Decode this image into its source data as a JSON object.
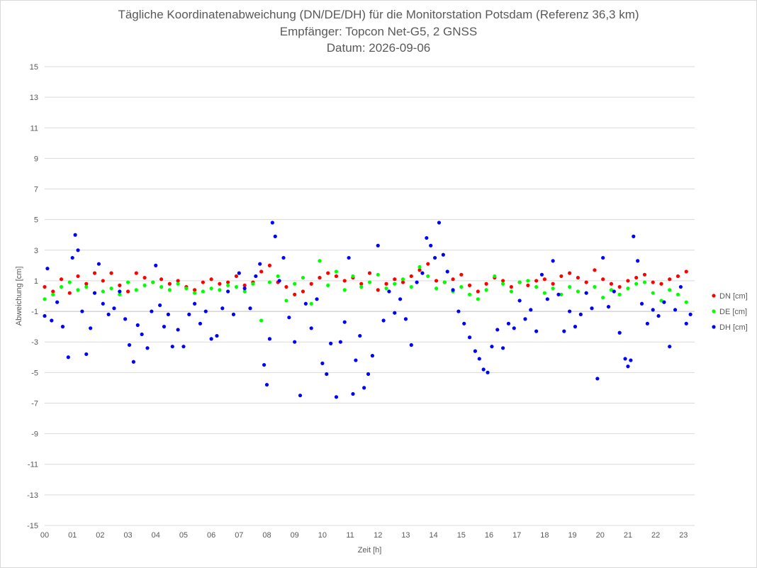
{
  "chart_data": {
    "type": "scatter",
    "title_lines": [
      "Tägliche Koordinatenabweichung (DN/DE/DH) für die Monitorstation Potsdam (Referenz 36,3 km)",
      "Empfänger: Topcon Net-G5, 2 GNSS",
      "Datum: 2026-09-06"
    ],
    "xlabel": "Zeit [h]",
    "ylabel": "Abweichung [cm]",
    "xlim": [
      0,
      23.4
    ],
    "ylim": [
      -15,
      15
    ],
    "x_tick_labels": [
      "00",
      "01",
      "02",
      "03",
      "04",
      "05",
      "06",
      "07",
      "08",
      "09",
      "10",
      "11",
      "12",
      "13",
      "14",
      "15",
      "16",
      "17",
      "18",
      "19",
      "20",
      "21",
      "22",
      "23"
    ],
    "y_tick_labels": [
      "15",
      "13",
      "11",
      "9",
      "7",
      "5",
      "3",
      "1",
      "-1",
      "-3",
      "-5",
      "-7",
      "-9",
      "-11",
      "-13",
      "-15"
    ],
    "legend_position": "right",
    "grid": "horizontal",
    "series": [
      {
        "name": "DN [cm]",
        "color": "#ff0000",
        "points": [
          [
            0.0,
            0.6
          ],
          [
            0.3,
            0.3
          ],
          [
            0.6,
            1.1
          ],
          [
            0.9,
            0.2
          ],
          [
            1.2,
            1.3
          ],
          [
            1.5,
            0.8
          ],
          [
            1.8,
            1.5
          ],
          [
            2.1,
            1.0
          ],
          [
            2.4,
            1.5
          ],
          [
            2.7,
            0.7
          ],
          [
            3.0,
            0.3
          ],
          [
            3.3,
            1.5
          ],
          [
            3.6,
            1.2
          ],
          [
            3.9,
            0.9
          ],
          [
            4.2,
            1.1
          ],
          [
            4.5,
            0.8
          ],
          [
            4.8,
            1.0
          ],
          [
            5.1,
            0.6
          ],
          [
            5.4,
            0.4
          ],
          [
            5.7,
            0.9
          ],
          [
            6.0,
            1.1
          ],
          [
            6.3,
            0.8
          ],
          [
            6.6,
            0.9
          ],
          [
            6.9,
            1.3
          ],
          [
            7.2,
            0.7
          ],
          [
            7.5,
            0.9
          ],
          [
            7.8,
            1.6
          ],
          [
            8.1,
            2.0
          ],
          [
            8.4,
            0.9
          ],
          [
            8.7,
            0.6
          ],
          [
            9.0,
            0.1
          ],
          [
            9.3,
            0.3
          ],
          [
            9.6,
            0.8
          ],
          [
            9.9,
            1.2
          ],
          [
            10.2,
            1.5
          ],
          [
            10.5,
            1.3
          ],
          [
            10.8,
            1.0
          ],
          [
            11.1,
            1.2
          ],
          [
            11.4,
            0.8
          ],
          [
            11.7,
            1.5
          ],
          [
            12.0,
            0.4
          ],
          [
            12.3,
            0.8
          ],
          [
            12.6,
            1.1
          ],
          [
            12.9,
            0.9
          ],
          [
            13.2,
            1.3
          ],
          [
            13.5,
            1.7
          ],
          [
            13.8,
            2.1
          ],
          [
            14.1,
            1.0
          ],
          [
            14.4,
            0.9
          ],
          [
            14.7,
            1.1
          ],
          [
            15.0,
            1.4
          ],
          [
            15.3,
            0.7
          ],
          [
            15.6,
            0.3
          ],
          [
            15.9,
            0.8
          ],
          [
            16.2,
            1.2
          ],
          [
            16.5,
            1.0
          ],
          [
            16.8,
            0.6
          ],
          [
            17.1,
            0.9
          ],
          [
            17.4,
            0.7
          ],
          [
            17.7,
            1.0
          ],
          [
            18.0,
            1.1
          ],
          [
            18.3,
            0.8
          ],
          [
            18.6,
            1.3
          ],
          [
            18.9,
            1.5
          ],
          [
            19.2,
            1.2
          ],
          [
            19.5,
            0.9
          ],
          [
            19.8,
            1.7
          ],
          [
            20.1,
            1.1
          ],
          [
            20.4,
            0.8
          ],
          [
            20.7,
            0.6
          ],
          [
            21.0,
            1.0
          ],
          [
            21.3,
            1.2
          ],
          [
            21.6,
            1.4
          ],
          [
            21.9,
            0.9
          ],
          [
            22.2,
            0.8
          ],
          [
            22.5,
            1.1
          ],
          [
            22.8,
            1.3
          ],
          [
            23.1,
            1.6
          ]
        ]
      },
      {
        "name": "DE [cm]",
        "color": "#00ff00",
        "points": [
          [
            0.0,
            -0.2
          ],
          [
            0.3,
            0.1
          ],
          [
            0.6,
            0.6
          ],
          [
            0.9,
            0.9
          ],
          [
            1.2,
            0.4
          ],
          [
            1.5,
            0.6
          ],
          [
            1.8,
            0.2
          ],
          [
            2.1,
            0.3
          ],
          [
            2.4,
            0.5
          ],
          [
            2.7,
            0.1
          ],
          [
            3.0,
            0.9
          ],
          [
            3.3,
            0.4
          ],
          [
            3.6,
            0.7
          ],
          [
            3.9,
            0.9
          ],
          [
            4.2,
            0.6
          ],
          [
            4.5,
            0.4
          ],
          [
            4.8,
            0.8
          ],
          [
            5.1,
            0.5
          ],
          [
            5.4,
            0.2
          ],
          [
            5.7,
            0.3
          ],
          [
            6.0,
            0.5
          ],
          [
            6.3,
            0.4
          ],
          [
            6.6,
            0.7
          ],
          [
            6.9,
            0.6
          ],
          [
            7.2,
            0.3
          ],
          [
            7.5,
            0.8
          ],
          [
            7.8,
            -1.6
          ],
          [
            8.1,
            0.9
          ],
          [
            8.4,
            1.3
          ],
          [
            8.7,
            -0.3
          ],
          [
            9.0,
            0.8
          ],
          [
            9.3,
            1.2
          ],
          [
            9.6,
            -0.5
          ],
          [
            9.9,
            2.3
          ],
          [
            10.2,
            0.7
          ],
          [
            10.5,
            1.6
          ],
          [
            10.8,
            0.4
          ],
          [
            11.1,
            1.3
          ],
          [
            11.4,
            0.6
          ],
          [
            11.7,
            0.9
          ],
          [
            12.0,
            1.4
          ],
          [
            12.3,
            0.5
          ],
          [
            12.6,
            0.8
          ],
          [
            12.9,
            1.1
          ],
          [
            13.2,
            0.6
          ],
          [
            13.5,
            1.9
          ],
          [
            13.8,
            1.3
          ],
          [
            14.1,
            0.5
          ],
          [
            14.4,
            0.9
          ],
          [
            14.7,
            0.3
          ],
          [
            15.0,
            0.6
          ],
          [
            15.3,
            0.1
          ],
          [
            15.6,
            -0.2
          ],
          [
            15.9,
            0.4
          ],
          [
            16.2,
            1.3
          ],
          [
            16.5,
            0.8
          ],
          [
            16.8,
            0.3
          ],
          [
            17.1,
            0.9
          ],
          [
            17.4,
            1.0
          ],
          [
            17.7,
            0.6
          ],
          [
            18.0,
            0.2
          ],
          [
            18.3,
            0.5
          ],
          [
            18.6,
            0.1
          ],
          [
            18.9,
            0.6
          ],
          [
            19.2,
            0.3
          ],
          [
            19.5,
            0.2
          ],
          [
            19.8,
            0.6
          ],
          [
            20.1,
            -0.1
          ],
          [
            20.4,
            0.4
          ],
          [
            20.7,
            0.1
          ],
          [
            21.0,
            0.5
          ],
          [
            21.3,
            0.8
          ],
          [
            21.6,
            0.9
          ],
          [
            21.9,
            0.2
          ],
          [
            22.2,
            -0.3
          ],
          [
            22.5,
            0.4
          ],
          [
            22.8,
            0.1
          ],
          [
            23.1,
            -0.4
          ]
        ]
      },
      {
        "name": "DH [cm]",
        "color": "#0000ff",
        "points": [
          [
            0.0,
            -1.3
          ],
          [
            0.1,
            1.8
          ],
          [
            0.25,
            -1.6
          ],
          [
            0.45,
            -0.4
          ],
          [
            0.65,
            -2.0
          ],
          [
            0.85,
            -4.0
          ],
          [
            1.0,
            2.5
          ],
          [
            1.1,
            4.0
          ],
          [
            1.2,
            3.0
          ],
          [
            1.35,
            -1.0
          ],
          [
            1.5,
            -3.8
          ],
          [
            1.65,
            -2.1
          ],
          [
            1.8,
            0.2
          ],
          [
            1.95,
            2.1
          ],
          [
            2.1,
            -0.5
          ],
          [
            2.3,
            -1.2
          ],
          [
            2.5,
            -0.8
          ],
          [
            2.7,
            0.3
          ],
          [
            2.9,
            -1.5
          ],
          [
            3.05,
            -3.2
          ],
          [
            3.2,
            -4.3
          ],
          [
            3.35,
            -1.9
          ],
          [
            3.5,
            -2.5
          ],
          [
            3.7,
            -3.4
          ],
          [
            3.85,
            -1.0
          ],
          [
            4.0,
            2.0
          ],
          [
            4.15,
            -0.6
          ],
          [
            4.3,
            -2.0
          ],
          [
            4.45,
            -1.2
          ],
          [
            4.6,
            -3.3
          ],
          [
            4.8,
            -2.2
          ],
          [
            5.0,
            -3.3
          ],
          [
            5.2,
            -1.2
          ],
          [
            5.4,
            -0.5
          ],
          [
            5.6,
            -1.8
          ],
          [
            5.8,
            -1.0
          ],
          [
            6.0,
            -2.8
          ],
          [
            6.2,
            -2.6
          ],
          [
            6.4,
            -0.8
          ],
          [
            6.6,
            0.3
          ],
          [
            6.8,
            -1.2
          ],
          [
            7.0,
            1.5
          ],
          [
            7.2,
            0.5
          ],
          [
            7.4,
            -0.8
          ],
          [
            7.6,
            1.3
          ],
          [
            7.75,
            2.1
          ],
          [
            7.9,
            -4.5
          ],
          [
            8.0,
            -5.8
          ],
          [
            8.1,
            -2.8
          ],
          [
            8.2,
            4.8
          ],
          [
            8.3,
            3.9
          ],
          [
            8.45,
            1.0
          ],
          [
            8.6,
            2.5
          ],
          [
            8.8,
            -1.4
          ],
          [
            9.0,
            -3.0
          ],
          [
            9.2,
            -6.5
          ],
          [
            9.4,
            -0.5
          ],
          [
            9.6,
            -2.1
          ],
          [
            9.8,
            -0.2
          ],
          [
            10.0,
            -4.4
          ],
          [
            10.15,
            -5.1
          ],
          [
            10.3,
            -3.1
          ],
          [
            10.5,
            -6.6
          ],
          [
            10.65,
            -3.0
          ],
          [
            10.8,
            -1.7
          ],
          [
            10.95,
            2.5
          ],
          [
            11.1,
            -6.4
          ],
          [
            11.2,
            -4.2
          ],
          [
            11.35,
            -2.6
          ],
          [
            11.5,
            -6.0
          ],
          [
            11.65,
            -5.1
          ],
          [
            11.8,
            -3.9
          ],
          [
            12.0,
            3.3
          ],
          [
            12.2,
            -1.6
          ],
          [
            12.4,
            0.3
          ],
          [
            12.6,
            -1.1
          ],
          [
            12.8,
            -0.2
          ],
          [
            13.0,
            -1.5
          ],
          [
            13.2,
            -3.2
          ],
          [
            13.4,
            0.9
          ],
          [
            13.6,
            1.5
          ],
          [
            13.75,
            3.8
          ],
          [
            13.9,
            3.3
          ],
          [
            14.05,
            2.5
          ],
          [
            14.2,
            4.8
          ],
          [
            14.35,
            2.7
          ],
          [
            14.5,
            1.6
          ],
          [
            14.7,
            0.4
          ],
          [
            14.9,
            -1.0
          ],
          [
            15.1,
            -1.8
          ],
          [
            15.3,
            -2.7
          ],
          [
            15.5,
            -3.6
          ],
          [
            15.65,
            -4.1
          ],
          [
            15.8,
            -4.8
          ],
          [
            15.95,
            -5.0
          ],
          [
            16.1,
            -3.3
          ],
          [
            16.3,
            -2.2
          ],
          [
            16.5,
            -3.4
          ],
          [
            16.7,
            -1.8
          ],
          [
            16.9,
            -2.1
          ],
          [
            17.1,
            -0.3
          ],
          [
            17.3,
            -1.5
          ],
          [
            17.5,
            -0.9
          ],
          [
            17.7,
            -2.3
          ],
          [
            17.9,
            1.4
          ],
          [
            18.1,
            -0.2
          ],
          [
            18.3,
            2.3
          ],
          [
            18.5,
            0.1
          ],
          [
            18.7,
            -2.3
          ],
          [
            18.9,
            -1.0
          ],
          [
            19.1,
            -2.0
          ],
          [
            19.3,
            -1.2
          ],
          [
            19.5,
            0.2
          ],
          [
            19.7,
            -0.8
          ],
          [
            19.9,
            -5.4
          ],
          [
            20.1,
            2.5
          ],
          [
            20.3,
            -0.7
          ],
          [
            20.5,
            0.3
          ],
          [
            20.7,
            -2.4
          ],
          [
            20.9,
            -4.1
          ],
          [
            21.0,
            -4.6
          ],
          [
            21.1,
            -4.2
          ],
          [
            21.2,
            3.9
          ],
          [
            21.35,
            2.3
          ],
          [
            21.5,
            -0.5
          ],
          [
            21.7,
            -1.8
          ],
          [
            21.9,
            -0.9
          ],
          [
            22.1,
            -1.3
          ],
          [
            22.3,
            -0.4
          ],
          [
            22.5,
            -3.3
          ],
          [
            22.7,
            -0.9
          ],
          [
            22.9,
            0.6
          ],
          [
            23.1,
            -1.8
          ],
          [
            23.25,
            -1.2
          ]
        ]
      }
    ]
  }
}
